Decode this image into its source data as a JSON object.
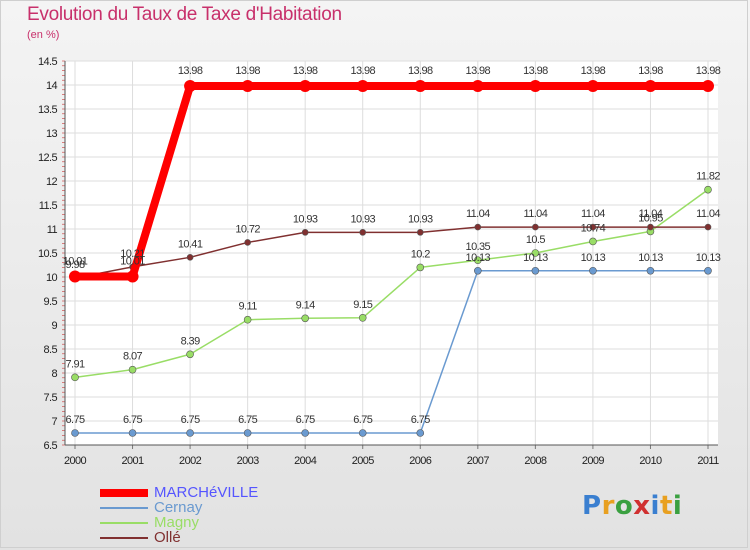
{
  "title": "Evolution du Taux de Taxe d'Habitation",
  "unit": "(en %)",
  "watermark": "Proxiti",
  "chart_data": {
    "type": "line",
    "title": "Evolution du Taux de Taxe d'Habitation",
    "subtitle": "(en %)",
    "x": [
      "2000",
      "2001",
      "2002",
      "2003",
      "2004",
      "2005",
      "2006",
      "2007",
      "2008",
      "2009",
      "2010",
      "2011"
    ],
    "ylim": [
      6.5,
      14.5
    ],
    "yticks": [
      "6.5",
      "7",
      "7.5",
      "8",
      "8.5",
      "9",
      "9.5",
      "10",
      "10.5",
      "11",
      "11.5",
      "12",
      "12.5",
      "13",
      "13.5",
      "14",
      "14.5"
    ],
    "grid": true,
    "legend_position": "bottom-left",
    "series": [
      {
        "name": "MARCHéVILLE",
        "color": "#ff0000",
        "values": [
          10.01,
          10.01,
          13.98,
          13.98,
          13.98,
          13.98,
          13.98,
          13.98,
          13.98,
          13.98,
          13.98,
          13.98
        ],
        "labels": [
          "10.01",
          "10.01",
          "13.98",
          "13.98",
          "13.98",
          "13.98",
          "13.98",
          "13.98",
          "13.98",
          "13.98",
          "13.98",
          "13.98"
        ]
      },
      {
        "name": "Cernay",
        "color": "#6a9ad0",
        "values": [
          6.75,
          6.75,
          6.75,
          6.75,
          6.75,
          6.75,
          6.75,
          10.13,
          10.13,
          10.13,
          10.13,
          10.13
        ],
        "labels": [
          "6.75",
          "6.75",
          "6.75",
          "6.75",
          "6.75",
          "6.75",
          "6.75",
          "10.13",
          "10.13",
          "10.13",
          "10.13",
          "10.13"
        ]
      },
      {
        "name": "Magny",
        "color": "#99dd66",
        "values": [
          7.91,
          8.07,
          8.39,
          9.11,
          9.14,
          9.15,
          10.2,
          10.35,
          10.5,
          10.74,
          10.95,
          11.82
        ],
        "labels": [
          "7.91",
          "8.07",
          "8.39",
          "9.11",
          "9.14",
          "9.15",
          "10.2",
          "10.35",
          "10.5",
          "10.74",
          "10.95",
          "11.82"
        ]
      },
      {
        "name": "Ollé",
        "color": "#803030",
        "values": [
          9.98,
          10.21,
          10.41,
          10.72,
          10.93,
          10.93,
          10.93,
          11.04,
          11.04,
          11.04,
          11.04,
          11.04
        ],
        "labels": [
          "9.98",
          "10.21",
          "10.41",
          "10.72",
          "10.93",
          "10.93",
          "10.93",
          "11.04",
          "11.04",
          "11.04",
          "11.04",
          "11.04"
        ]
      }
    ]
  }
}
